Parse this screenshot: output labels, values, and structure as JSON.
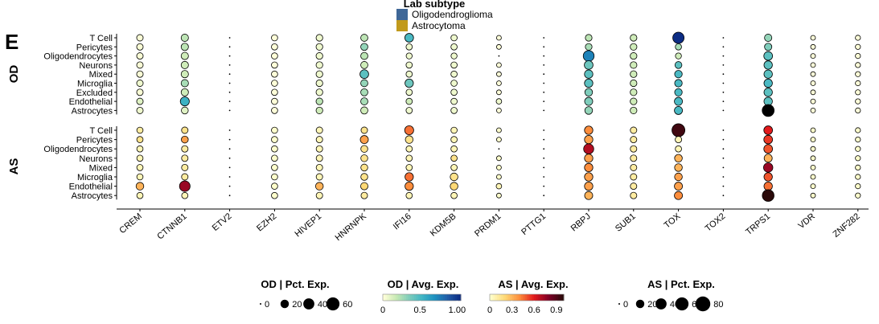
{
  "panel_label": "E",
  "legend_top": {
    "title": "Lab subtype",
    "items": [
      {
        "label": "Oligodendroglioma",
        "color": "#3f6797"
      },
      {
        "label": "Astrocytoma",
        "color": "#c19a1c"
      }
    ]
  },
  "legends": {
    "od_pct": {
      "title": "OD | Pct. Exp.",
      "labels": [
        "0",
        "20",
        "40",
        "60"
      ]
    },
    "od_avg": {
      "title": "OD | Avg. Exp.",
      "labels": [
        "0",
        "0.5",
        "1.00"
      ],
      "colors": [
        "#ffffd9",
        "#c7e9b4",
        "#7fcdbb",
        "#41b6c4",
        "#1d91c0",
        "#225ea8",
        "#0c2c84"
      ]
    },
    "as_avg": {
      "title": "AS | Avg. Exp.",
      "labels": [
        "0",
        "0.3",
        "0.6",
        "0.9"
      ],
      "colors": [
        "#ffffcc",
        "#fed976",
        "#fd8d3c",
        "#e31a1c",
        "#800026",
        "#2a0a0a"
      ]
    },
    "as_pct": {
      "title": "AS | Pct. Exp.",
      "labels": [
        "0",
        "20",
        "40",
        "60",
        "80"
      ]
    }
  },
  "chart_data": {
    "type": "dotplot",
    "genes": [
      "CREM",
      "CTNNB1",
      "ETV2",
      "EZH2",
      "HIVEP1",
      "HNRNPK",
      "IFI16",
      "KDM5B",
      "PRDM1",
      "PTTG1",
      "RBPJ",
      "SUB1",
      "TOX",
      "TOX2",
      "TRPS1",
      "VDR",
      "ZNF282"
    ],
    "cell_types": [
      "T Cell",
      "Pericytes",
      "Oligodendrocytes",
      "Neurons",
      "Mixed",
      "Microglia",
      "Excluded",
      "Endothelial",
      "Astrocytes"
    ],
    "facets": [
      {
        "name": "OD",
        "cell_types": [
          "T Cell",
          "Pericytes",
          "Oligodendrocytes",
          "Neurons",
          "Mixed",
          "Microglia",
          "Excluded",
          "Endothelial",
          "Astrocytes"
        ],
        "pct": [
          [
            10,
            14,
            2,
            9,
            11,
            13,
            22,
            9,
            4,
            2,
            11,
            11,
            42,
            3,
            14,
            4,
            5
          ],
          [
            10,
            14,
            2,
            9,
            11,
            13,
            9,
            9,
            4,
            2,
            11,
            11,
            9,
            3,
            14,
            4,
            5
          ],
          [
            10,
            14,
            2,
            9,
            11,
            13,
            8,
            8,
            3,
            2,
            38,
            11,
            8,
            3,
            22,
            4,
            5
          ],
          [
            10,
            14,
            2,
            9,
            11,
            13,
            9,
            9,
            4,
            2,
            22,
            11,
            12,
            3,
            20,
            4,
            5
          ],
          [
            10,
            14,
            2,
            9,
            11,
            22,
            9,
            9,
            4,
            2,
            20,
            11,
            15,
            3,
            20,
            4,
            5
          ],
          [
            10,
            14,
            2,
            9,
            11,
            13,
            20,
            9,
            4,
            2,
            20,
            11,
            15,
            3,
            20,
            4,
            5
          ],
          [
            10,
            14,
            2,
            9,
            11,
            13,
            9,
            9,
            4,
            2,
            16,
            11,
            15,
            3,
            20,
            4,
            5
          ],
          [
            10,
            24,
            2,
            9,
            11,
            13,
            9,
            9,
            6,
            2,
            18,
            11,
            18,
            3,
            20,
            4,
            5
          ],
          [
            10,
            12,
            2,
            9,
            11,
            13,
            9,
            9,
            4,
            2,
            16,
            11,
            18,
            3,
            48,
            4,
            5
          ]
        ],
        "avg": [
          [
            0.02,
            0.2,
            0,
            0,
            0.05,
            0.2,
            0.5,
            0.05,
            0,
            0,
            0.2,
            0.15,
            1.1,
            0,
            0.3,
            0,
            0
          ],
          [
            0.02,
            0.2,
            0,
            0,
            0.05,
            0.3,
            0.05,
            0.05,
            0,
            0,
            0.25,
            0.15,
            0.25,
            0,
            0.35,
            0,
            0
          ],
          [
            0.02,
            0.15,
            0,
            0,
            0.05,
            0.2,
            0.05,
            0.05,
            0,
            0,
            0.75,
            0.15,
            0.15,
            0,
            0.45,
            0,
            0
          ],
          [
            0.02,
            0.15,
            0,
            0,
            0.05,
            0.15,
            0.05,
            0.05,
            0,
            0,
            0.4,
            0.15,
            0.45,
            0,
            0.45,
            0,
            0
          ],
          [
            0.02,
            0.15,
            0,
            0,
            0.05,
            0.45,
            0.05,
            0.05,
            0,
            0,
            0.45,
            0.15,
            0.5,
            0,
            0.45,
            0,
            0
          ],
          [
            0.05,
            0.25,
            0,
            0,
            0.05,
            0.3,
            0.4,
            0.05,
            0,
            0,
            0.45,
            0.15,
            0.5,
            0,
            0.5,
            0,
            0
          ],
          [
            0.02,
            0.15,
            0,
            0,
            0.05,
            0.25,
            0.05,
            0.05,
            0,
            0,
            0.35,
            0.15,
            0.5,
            0,
            0.45,
            0,
            0
          ],
          [
            0.1,
            0.55,
            0,
            0,
            0.2,
            0.25,
            0.15,
            0.05,
            0.05,
            0,
            0.35,
            0.15,
            0.5,
            0,
            0.45,
            0,
            0
          ],
          [
            0.05,
            0.1,
            0,
            0,
            0.15,
            0.15,
            0.05,
            0.05,
            0,
            0,
            0.3,
            0.15,
            0.5,
            0,
            1.3,
            0,
            0
          ]
        ]
      },
      {
        "name": "AS",
        "cell_types": [
          "T Cell",
          "Pericytes",
          "Oligodendrocytes",
          "Neurons",
          "Mixed",
          "Microglia",
          "Endothelial",
          "Astrocytes"
        ],
        "pct": [
          [
            9,
            10,
            2,
            9,
            10,
            10,
            24,
            9,
            4,
            2,
            20,
            10,
            58,
            3,
            22,
            4,
            5
          ],
          [
            9,
            12,
            2,
            9,
            10,
            18,
            16,
            9,
            4,
            2,
            20,
            10,
            10,
            3,
            22,
            4,
            5
          ],
          [
            9,
            10,
            2,
            9,
            10,
            12,
            9,
            9,
            3,
            2,
            32,
            10,
            9,
            3,
            22,
            4,
            5
          ],
          [
            9,
            10,
            2,
            9,
            10,
            12,
            9,
            9,
            4,
            2,
            20,
            10,
            16,
            3,
            18,
            4,
            5
          ],
          [
            9,
            10,
            2,
            9,
            10,
            12,
            9,
            9,
            4,
            2,
            20,
            10,
            16,
            3,
            26,
            4,
            5
          ],
          [
            9,
            10,
            2,
            9,
            10,
            12,
            20,
            16,
            4,
            2,
            20,
            10,
            16,
            3,
            20,
            4,
            5
          ],
          [
            16,
            36,
            2,
            9,
            16,
            14,
            20,
            16,
            6,
            2,
            20,
            10,
            18,
            3,
            20,
            4,
            5
          ],
          [
            9,
            9,
            2,
            9,
            10,
            10,
            9,
            9,
            4,
            2,
            18,
            10,
            18,
            3,
            46,
            4,
            5
          ]
        ],
        "avg": [
          [
            0.1,
            0.15,
            0,
            0,
            0.05,
            0.15,
            0.45,
            0.05,
            0,
            0,
            0.4,
            0.1,
            0.95,
            0,
            0.6,
            0,
            0
          ],
          [
            0.15,
            0.35,
            0,
            0,
            0.05,
            0.35,
            0.15,
            0.05,
            0,
            0,
            0.35,
            0.1,
            0.05,
            0,
            0.55,
            0,
            0
          ],
          [
            0.05,
            0.1,
            0,
            0,
            0.05,
            0.15,
            0.05,
            0.05,
            0,
            0,
            0.7,
            0.1,
            0.05,
            0,
            0.5,
            0,
            0
          ],
          [
            0.05,
            0.1,
            0,
            0,
            0.05,
            0.15,
            0.05,
            0.15,
            0,
            0,
            0.35,
            0.1,
            0.3,
            0,
            0.3,
            0,
            0
          ],
          [
            0.05,
            0.1,
            0,
            0,
            0.05,
            0.15,
            0.05,
            0.05,
            0,
            0,
            0.4,
            0.1,
            0.3,
            0,
            0.75,
            0,
            0
          ],
          [
            0.05,
            0.1,
            0,
            0,
            0.05,
            0.15,
            0.45,
            0.15,
            0,
            0,
            0.35,
            0.1,
            0.35,
            0,
            0.5,
            0,
            0
          ],
          [
            0.3,
            0.75,
            0,
            0,
            0.3,
            0.2,
            0.4,
            0.2,
            0.05,
            0,
            0.35,
            0.1,
            0.35,
            0,
            0.45,
            0,
            0
          ],
          [
            0.05,
            0.05,
            0,
            0,
            0.05,
            0.1,
            0.05,
            0.05,
            0,
            0,
            0.3,
            0.1,
            0.4,
            0,
            1.0,
            0,
            0
          ]
        ]
      }
    ],
    "size_legend_values": {
      "od": [
        0,
        20,
        40,
        60
      ],
      "as": [
        0,
        20,
        40,
        60,
        80
      ]
    }
  }
}
